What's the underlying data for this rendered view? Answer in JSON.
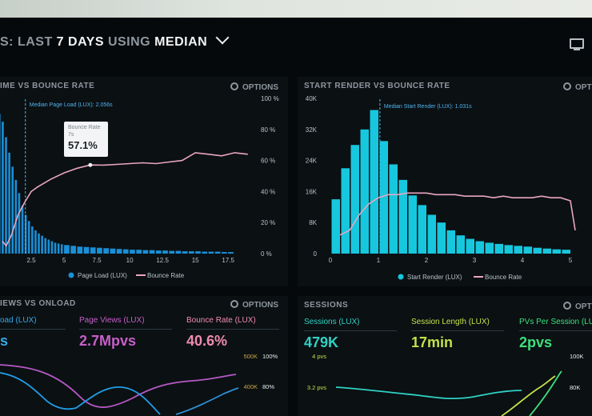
{
  "header": {
    "title_prefix": "S: LAST",
    "title_days": "7 DAYS",
    "title_using": "USING",
    "title_median": "MEDIAN"
  },
  "panels": {
    "page_load": {
      "title": "IME VS BOUNCE RATE",
      "options_label": "OPTIONS",
      "median_label": "Median Page Load (LUX): 2.056s",
      "tooltip": {
        "title": "Bounce Rate",
        "sub": "7s",
        "value": "57.1%"
      },
      "legend": {
        "bars": "Page Load (LUX)",
        "line": "Bounce Rate"
      }
    },
    "start_render": {
      "title": "START RENDER VS BOUNCE RATE",
      "options_label": "OPT",
      "median_label": "Median Start Render (LUX): 1.031s",
      "legend": {
        "bars": "Start Render (LUX)",
        "line": "Bounce Rate"
      }
    },
    "page_views": {
      "title": "IEWS VS ONLOAD",
      "options_label": "OPTIONS",
      "metrics": [
        {
          "label": "oad (LUX)",
          "value": "s"
        },
        {
          "label": "Page Views (LUX)",
          "value": "2.7Mpvs"
        },
        {
          "label": "Bounce Rate (LUX)",
          "value": "40.6%"
        }
      ]
    },
    "sessions": {
      "title": "SESSIONS",
      "options_label": "OPT",
      "metrics": [
        {
          "label": "Sessions (LUX)",
          "value": "479K"
        },
        {
          "label": "Session Length (LUX)",
          "value": "17min"
        },
        {
          "label": "PVs Per Session (LU",
          "value": "2pvs"
        }
      ]
    }
  },
  "chart_data": [
    {
      "type": "bar",
      "x": [
        0.25,
        0.5,
        0.75,
        1.0,
        1.25,
        1.5,
        1.75,
        2.0,
        2.25,
        2.5,
        2.75,
        3.0,
        3.25,
        3.5,
        3.75,
        4.0,
        4.25,
        4.5,
        4.75,
        5.0,
        5.5,
        6.0,
        6.5,
        7.0,
        7.5,
        8.0,
        8.5,
        9.0,
        9.5,
        10.0,
        10.5,
        11.0,
        11.5,
        12.0,
        12.5,
        13.0,
        13.5,
        14.0,
        14.5,
        15.0,
        15.5,
        16.0,
        16.5,
        17.0,
        17.5,
        18.0
      ],
      "values": [
        180,
        170,
        150,
        130,
        112,
        95,
        78,
        62,
        50,
        42,
        35,
        30,
        26,
        23,
        20,
        18,
        16,
        14,
        13,
        12,
        11,
        10,
        9,
        8.5,
        8,
        7.5,
        7,
        6.5,
        6,
        5.5,
        5,
        5,
        4.5,
        4.5,
        4,
        4,
        3.5,
        3.5,
        3,
        3,
        3,
        2.5,
        2.5,
        2.5,
        2,
        2
      ],
      "series_bars_name": "Page Load (LUX)",
      "series": [
        {
          "name": "Bounce Rate",
          "x": [
            0.3,
            0.6,
            1.0,
            1.5,
            2.0,
            2.5,
            3.0,
            4.0,
            5.0,
            6.0,
            7.0,
            8.0,
            9.0,
            10.0,
            11.0,
            12.0,
            13.0,
            14.0,
            15.0,
            16.0,
            17.0,
            18.0,
            19.0
          ],
          "values": [
            8,
            5,
            12,
            25,
            33,
            40,
            43,
            48,
            52,
            55,
            57.1,
            57,
            57.5,
            58,
            58.5,
            58,
            59,
            60,
            65,
            64,
            63,
            65,
            64
          ]
        }
      ],
      "x_ticks": [
        "2.5",
        "5",
        "7.5",
        "10",
        "12.5",
        "15",
        "17.5"
      ],
      "y2_ticks": [
        "0 %",
        "20 %",
        "40 %",
        "60 %",
        "80 %",
        "100 %"
      ],
      "median_x": 2.056,
      "legend_position": "bottom"
    },
    {
      "type": "bar",
      "x": [
        0.2,
        0.4,
        0.6,
        0.8,
        1.0,
        1.2,
        1.4,
        1.6,
        1.8,
        2.0,
        2.2,
        2.4,
        2.6,
        2.8,
        3.0,
        3.2,
        3.4,
        3.6,
        3.8,
        4.0,
        4.2,
        4.4,
        4.6,
        4.8,
        5.0
      ],
      "values": [
        14,
        22,
        28,
        32,
        37,
        29,
        23,
        19,
        15,
        12.5,
        10,
        8,
        6,
        4.7,
        3.8,
        3.2,
        2.8,
        2.5,
        2.2,
        2,
        1.8,
        1.5,
        1.3,
        1.1,
        1
      ],
      "series_bars_name": "Start Render (LUX)",
      "series": [
        {
          "name": "Bounce Rate",
          "x": [
            0.2,
            0.4,
            0.6,
            0.8,
            1.0,
            1.2,
            1.4,
            1.6,
            1.8,
            2.0,
            2.2,
            2.4,
            2.6,
            2.8,
            3.0,
            3.2,
            3.4,
            3.6,
            3.8,
            4.0,
            4.2,
            4.4,
            4.6,
            4.8,
            5.0,
            5.1
          ],
          "values": [
            12,
            15,
            25,
            32,
            36,
            38,
            38,
            39,
            39,
            39,
            38,
            38,
            38,
            37,
            37,
            37,
            36,
            37,
            36,
            36,
            36,
            37,
            36,
            36,
            34,
            15
          ]
        }
      ],
      "x_ticks": [
        "0",
        "1",
        "2",
        "3",
        "4",
        "5"
      ],
      "y_ticks": [
        "0",
        "8K",
        "16K",
        "24K",
        "32K",
        "40K"
      ],
      "median_x": 1.031,
      "legend_position": "bottom"
    },
    {
      "type": "line",
      "y2_ticks": [
        "500K",
        "400K"
      ],
      "y2b_ticks": [
        "100%",
        "80%"
      ]
    },
    {
      "type": "line",
      "y_ticks": [
        "4 pvs",
        "3.2 pvs"
      ],
      "y2_ticks": [
        "100K",
        "80K"
      ]
    }
  ]
}
